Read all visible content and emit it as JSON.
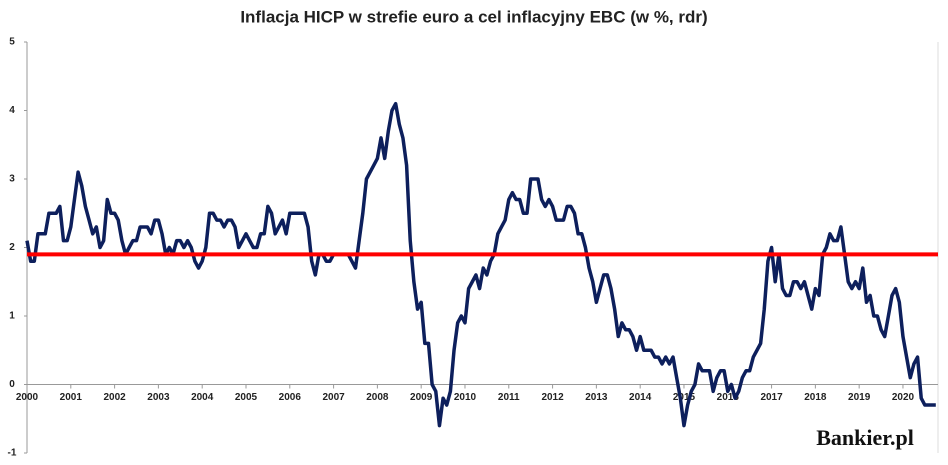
{
  "chart_data": {
    "type": "line",
    "title": "Inflacja HICP w strefie euro a cel inflacyjny EBC (w %, rdr)",
    "watermark": "Bankier.pl",
    "xlim": [
      2000,
      2020.8
    ],
    "xticks": [
      2000,
      2001,
      2002,
      2003,
      2004,
      2005,
      2006,
      2007,
      2008,
      2009,
      2010,
      2011,
      2012,
      2013,
      2014,
      2015,
      2016,
      2017,
      2018,
      2019,
      2020
    ],
    "ylim": [
      -1,
      5
    ],
    "yticks": [
      -1,
      0,
      1,
      2,
      3,
      4,
      5
    ],
    "target_line": {
      "value": 1.9,
      "color": "#ff0000"
    },
    "x": [
      2000,
      2000.083,
      2000.167,
      2000.25,
      2000.333,
      2000.417,
      2000.5,
      2000.583,
      2000.667,
      2000.75,
      2000.833,
      2000.917,
      2001,
      2001.083,
      2001.167,
      2001.25,
      2001.333,
      2001.417,
      2001.5,
      2001.583,
      2001.667,
      2001.75,
      2001.833,
      2001.917,
      2002,
      2002.083,
      2002.167,
      2002.25,
      2002.333,
      2002.417,
      2002.5,
      2002.583,
      2002.667,
      2002.75,
      2002.833,
      2002.917,
      2003,
      2003.083,
      2003.167,
      2003.25,
      2003.333,
      2003.417,
      2003.5,
      2003.583,
      2003.667,
      2003.75,
      2003.833,
      2003.917,
      2004,
      2004.083,
      2004.167,
      2004.25,
      2004.333,
      2004.417,
      2004.5,
      2004.583,
      2004.667,
      2004.75,
      2004.833,
      2004.917,
      2005,
      2005.083,
      2005.167,
      2005.25,
      2005.333,
      2005.417,
      2005.5,
      2005.583,
      2005.667,
      2005.75,
      2005.833,
      2005.917,
      2006,
      2006.083,
      2006.167,
      2006.25,
      2006.333,
      2006.417,
      2006.5,
      2006.583,
      2006.667,
      2006.75,
      2006.833,
      2006.917,
      2007,
      2007.083,
      2007.167,
      2007.25,
      2007.333,
      2007.417,
      2007.5,
      2007.583,
      2007.667,
      2007.75,
      2007.833,
      2007.917,
      2008,
      2008.083,
      2008.167,
      2008.25,
      2008.333,
      2008.417,
      2008.5,
      2008.583,
      2008.667,
      2008.75,
      2008.833,
      2008.917,
      2009,
      2009.083,
      2009.167,
      2009.25,
      2009.333,
      2009.417,
      2009.5,
      2009.583,
      2009.667,
      2009.75,
      2009.833,
      2009.917,
      2010,
      2010.083,
      2010.167,
      2010.25,
      2010.333,
      2010.417,
      2010.5,
      2010.583,
      2010.667,
      2010.75,
      2010.833,
      2010.917,
      2011,
      2011.083,
      2011.167,
      2011.25,
      2011.333,
      2011.417,
      2011.5,
      2011.583,
      2011.667,
      2011.75,
      2011.833,
      2011.917,
      2012,
      2012.083,
      2012.167,
      2012.25,
      2012.333,
      2012.417,
      2012.5,
      2012.583,
      2012.667,
      2012.75,
      2012.833,
      2012.917,
      2013,
      2013.083,
      2013.167,
      2013.25,
      2013.333,
      2013.417,
      2013.5,
      2013.583,
      2013.667,
      2013.75,
      2013.833,
      2013.917,
      2014,
      2014.083,
      2014.167,
      2014.25,
      2014.333,
      2014.417,
      2014.5,
      2014.583,
      2014.667,
      2014.75,
      2014.833,
      2014.917,
      2015,
      2015.083,
      2015.167,
      2015.25,
      2015.333,
      2015.417,
      2015.5,
      2015.583,
      2015.667,
      2015.75,
      2015.833,
      2015.917,
      2016,
      2016.083,
      2016.167,
      2016.25,
      2016.333,
      2016.417,
      2016.5,
      2016.583,
      2016.667,
      2016.75,
      2016.833,
      2016.917,
      2017,
      2017.083,
      2017.167,
      2017.25,
      2017.333,
      2017.417,
      2017.5,
      2017.583,
      2017.667,
      2017.75,
      2017.833,
      2017.917,
      2018,
      2018.083,
      2018.167,
      2018.25,
      2018.333,
      2018.417,
      2018.5,
      2018.583,
      2018.667,
      2018.75,
      2018.833,
      2018.917,
      2019,
      2019.083,
      2019.167,
      2019.25,
      2019.333,
      2019.417,
      2019.5,
      2019.583,
      2019.667,
      2019.75,
      2019.833,
      2019.917,
      2020,
      2020.083,
      2020.167,
      2020.25,
      2020.333,
      2020.417,
      2020.5,
      2020.583,
      2020.667,
      2020.75
    ],
    "series": [
      {
        "color": "#0d1f5c",
        "values": [
          2.1,
          1.8,
          1.8,
          2.2,
          2.2,
          2.2,
          2.5,
          2.5,
          2.5,
          2.6,
          2.1,
          2.1,
          2.3,
          2.7,
          3.1,
          2.9,
          2.6,
          2.4,
          2.2,
          2.3,
          2.0,
          2.1,
          2.7,
          2.5,
          2.5,
          2.4,
          2.1,
          1.9,
          2.0,
          2.1,
          2.1,
          2.3,
          2.3,
          2.3,
          2.2,
          2.4,
          2.4,
          2.2,
          1.9,
          2.0,
          1.9,
          2.1,
          2.1,
          2.0,
          2.1,
          2.0,
          1.8,
          1.7,
          1.8,
          2.0,
          2.5,
          2.5,
          2.4,
          2.4,
          2.3,
          2.4,
          2.4,
          2.3,
          2.0,
          2.1,
          2.2,
          2.1,
          2.0,
          2.0,
          2.2,
          2.2,
          2.6,
          2.5,
          2.2,
          2.3,
          2.4,
          2.2,
          2.5,
          2.5,
          2.5,
          2.5,
          2.5,
          2.3,
          1.8,
          1.6,
          1.9,
          1.9,
          1.8,
          1.8,
          1.9,
          1.9,
          1.9,
          1.9,
          1.9,
          1.8,
          1.7,
          2.1,
          2.5,
          3.0,
          3.1,
          3.2,
          3.3,
          3.6,
          3.3,
          3.7,
          4.0,
          4.1,
          3.8,
          3.6,
          3.2,
          2.1,
          1.5,
          1.1,
          1.2,
          0.6,
          0.6,
          0.0,
          -0.1,
          -0.6,
          -0.2,
          -0.3,
          -0.1,
          0.5,
          0.9,
          1.0,
          0.9,
          1.4,
          1.5,
          1.6,
          1.4,
          1.7,
          1.6,
          1.8,
          1.9,
          2.2,
          2.3,
          2.4,
          2.7,
          2.8,
          2.7,
          2.7,
          2.5,
          2.5,
          3.0,
          3.0,
          3.0,
          2.7,
          2.6,
          2.7,
          2.6,
          2.4,
          2.4,
          2.4,
          2.6,
          2.6,
          2.5,
          2.2,
          2.2,
          2.0,
          1.7,
          1.5,
          1.2,
          1.4,
          1.6,
          1.6,
          1.4,
          1.1,
          0.7,
          0.9,
          0.8,
          0.8,
          0.7,
          0.5,
          0.7,
          0.5,
          0.5,
          0.5,
          0.4,
          0.4,
          0.3,
          0.4,
          0.3,
          0.4,
          0.1,
          -0.2,
          -0.6,
          -0.3,
          -0.1,
          0.0,
          0.3,
          0.2,
          0.2,
          0.2,
          -0.1,
          0.1,
          0.2,
          0.2,
          -0.1,
          0.0,
          -0.2,
          -0.1,
          0.1,
          0.2,
          0.2,
          0.4,
          0.5,
          0.6,
          1.1,
          1.8,
          2.0,
          1.5,
          1.9,
          1.4,
          1.3,
          1.3,
          1.5,
          1.5,
          1.4,
          1.5,
          1.3,
          1.1,
          1.4,
          1.3,
          1.9,
          2.0,
          2.2,
          2.1,
          2.1,
          2.3,
          1.9,
          1.5,
          1.4,
          1.5,
          1.4,
          1.7,
          1.2,
          1.3,
          1.0,
          1.0,
          0.8,
          0.7,
          1.0,
          1.3,
          1.4,
          1.2,
          0.7,
          0.4,
          0.1,
          0.3,
          0.4,
          -0.2,
          -0.3,
          -0.3,
          -0.3,
          -0.3
        ]
      }
    ]
  }
}
